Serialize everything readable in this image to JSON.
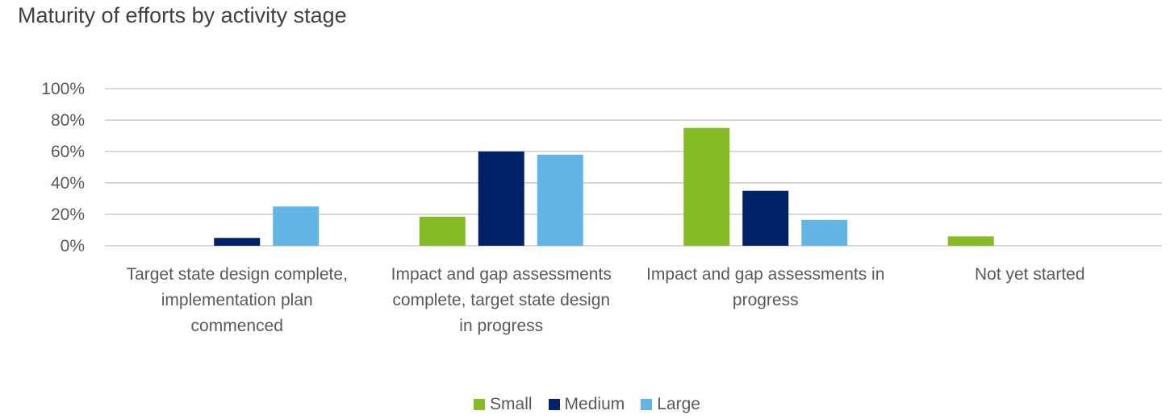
{
  "chart_data": {
    "type": "bar",
    "title": "Maturity of efforts by activity stage",
    "xlabel": "",
    "ylabel": "",
    "ylim": [
      0,
      100
    ],
    "yticks": [
      "0%",
      "20%",
      "40%",
      "60%",
      "80%",
      "100%"
    ],
    "grid": true,
    "legend_position": "bottom",
    "categories": [
      [
        "Target state design complete,",
        "implementation plan",
        "commenced"
      ],
      [
        "Impact and gap assessments",
        "complete, target state design",
        "in progress"
      ],
      [
        "Impact and gap assessments in",
        "progress"
      ],
      [
        "Not yet started"
      ]
    ],
    "series": [
      {
        "name": "Small",
        "color": "#86BC25",
        "values": [
          0,
          18.5,
          75,
          6
        ]
      },
      {
        "name": "Medium",
        "color": "#012169",
        "values": [
          5,
          60,
          35,
          0
        ]
      },
      {
        "name": "Large",
        "color": "#62B5E5",
        "values": [
          25,
          58,
          16.5,
          0
        ]
      }
    ]
  }
}
